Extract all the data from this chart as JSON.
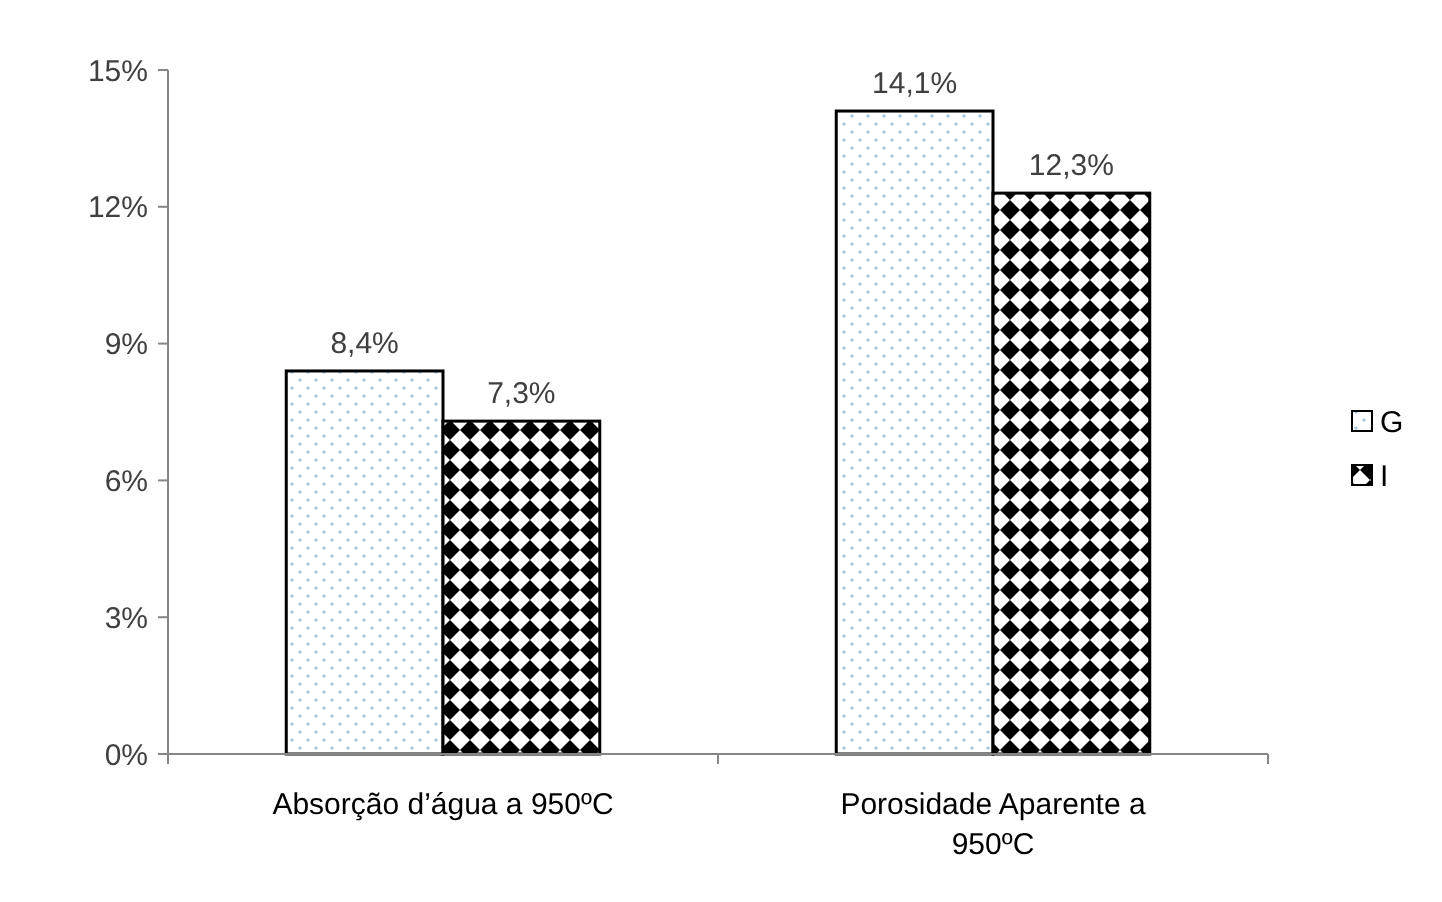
{
  "chart_data": {
    "type": "bar",
    "categories": [
      "Absorção d’água a 950ºC",
      "Porosidade Aparente a 950ºC"
    ],
    "series": [
      {
        "name": "G",
        "color": "#9dc3e6",
        "values": [
          8.4,
          14.1
        ],
        "value_labels": [
          "8,4%",
          "14,1%"
        ]
      },
      {
        "name": "I",
        "color": "#000000",
        "values": [
          7.3,
          12.3
        ],
        "value_labels": [
          "7,3%",
          "12,3%"
        ]
      }
    ],
    "ylim": [
      0,
      15
    ],
    "yticks": [
      {
        "value": 0,
        "label": "0%"
      },
      {
        "value": 3,
        "label": "3%"
      },
      {
        "value": 6,
        "label": "6%"
      },
      {
        "value": 9,
        "label": "9%"
      },
      {
        "value": 12,
        "label": "12%"
      },
      {
        "value": 15,
        "label": "15%"
      }
    ],
    "grid": false,
    "legend": "right"
  }
}
